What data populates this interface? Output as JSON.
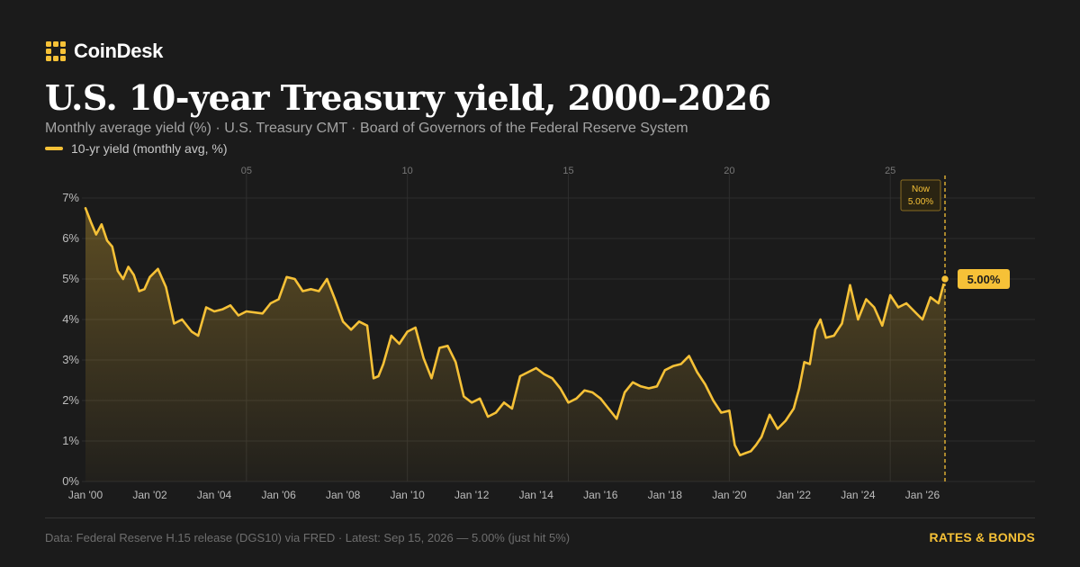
{
  "brand": {
    "name": "CoinDesk",
    "icon": "coindesk-logo-icon"
  },
  "header": {
    "title": "U.S. 10-year Treasury yield, 2000–2026",
    "subtitle": "Monthly average yield (%) · U.S. Treasury CMT · Board of Governors of the Federal Reserve System"
  },
  "legend": {
    "label": "10-yr yield (monthly avg, %)"
  },
  "footer": {
    "source": "Data: Federal Reserve H.15 release (DGS10) via FRED · Latest: Sep 15, 2026 — 5.00% (just hit 5%)",
    "tag": "RATES & BONDS"
  },
  "colors": {
    "background": "#1b1b1b",
    "accent": "#f6c137",
    "grid": "#2e2e2e",
    "axis_text": "#bdbdbd",
    "muted_text": "#a3a3a3"
  },
  "chart_data": {
    "type": "area",
    "title": "U.S. 10-year Treasury yield, 2000–2026",
    "y_unit": "%",
    "ylim": [
      0,
      7
    ],
    "y_ticks": [
      0,
      1,
      2,
      3,
      4,
      5,
      6,
      7
    ],
    "y_tick_labels": [
      "0%",
      "1%",
      "2%",
      "3%",
      "4%",
      "5%",
      "6%",
      "7%"
    ],
    "x_range": [
      2000.0,
      2026.7
    ],
    "x_ticks": [
      2000,
      2002,
      2004,
      2006,
      2008,
      2010,
      2012,
      2014,
      2016,
      2018,
      2020,
      2022,
      2024,
      2026
    ],
    "x_tick_labels": [
      "Jan '00",
      "Jan '02",
      "Jan '04",
      "Jan '06",
      "Jan '08",
      "Jan '10",
      "Jan '12",
      "Jan '14",
      "Jan '16",
      "Jan '18",
      "Jan '20",
      "Jan '22",
      "Jan '24",
      "Jan '26"
    ],
    "top_ticks": [
      2005,
      2010,
      2015,
      2020,
      2025
    ],
    "top_tick_labels": [
      "05",
      "10",
      "15",
      "20",
      "25"
    ],
    "grid": true,
    "series": [
      {
        "name": "10-yr yield (monthly avg, %)",
        "color": "#f6c137",
        "x": [
          2000.0,
          2000.17,
          2000.33,
          2000.5,
          2000.67,
          2000.83,
          2001.0,
          2001.17,
          2001.33,
          2001.5,
          2001.67,
          2001.83,
          2002.0,
          2002.25,
          2002.5,
          2002.75,
          2003.0,
          2003.3,
          2003.5,
          2003.75,
          2004.0,
          2004.25,
          2004.5,
          2004.75,
          2005.0,
          2005.5,
          2005.75,
          2006.0,
          2006.25,
          2006.5,
          2006.75,
          2007.0,
          2007.25,
          2007.5,
          2007.75,
          2008.0,
          2008.25,
          2008.5,
          2008.75,
          2008.95,
          2009.1,
          2009.25,
          2009.5,
          2009.75,
          2010.0,
          2010.25,
          2010.5,
          2010.75,
          2011.0,
          2011.25,
          2011.5,
          2011.75,
          2012.0,
          2012.25,
          2012.5,
          2012.75,
          2013.0,
          2013.25,
          2013.5,
          2013.75,
          2014.0,
          2014.25,
          2014.5,
          2014.75,
          2015.0,
          2015.25,
          2015.5,
          2015.75,
          2016.0,
          2016.25,
          2016.5,
          2016.75,
          2017.0,
          2017.25,
          2017.5,
          2017.75,
          2018.0,
          2018.25,
          2018.5,
          2018.75,
          2019.0,
          2019.25,
          2019.5,
          2019.75,
          2020.0,
          2020.17,
          2020.33,
          2020.5,
          2020.67,
          2020.83,
          2021.0,
          2021.25,
          2021.5,
          2021.75,
          2022.0,
          2022.17,
          2022.33,
          2022.5,
          2022.67,
          2022.83,
          2023.0,
          2023.25,
          2023.5,
          2023.75,
          2024.0,
          2024.25,
          2024.5,
          2024.75,
          2025.0,
          2025.25,
          2025.5,
          2025.75,
          2026.0,
          2026.25,
          2026.5,
          2026.7
        ],
        "y": [
          6.75,
          6.4,
          6.1,
          6.35,
          5.95,
          5.8,
          5.2,
          5.0,
          5.3,
          5.1,
          4.7,
          4.75,
          5.05,
          5.25,
          4.8,
          3.9,
          4.0,
          3.7,
          3.6,
          4.3,
          4.2,
          4.25,
          4.35,
          4.1,
          4.2,
          4.15,
          4.4,
          4.5,
          5.05,
          5.0,
          4.7,
          4.75,
          4.7,
          5.0,
          4.5,
          3.95,
          3.75,
          3.95,
          3.85,
          2.55,
          2.6,
          2.9,
          3.6,
          3.4,
          3.7,
          3.8,
          3.05,
          2.55,
          3.3,
          3.35,
          2.95,
          2.1,
          1.95,
          2.05,
          1.6,
          1.7,
          1.95,
          1.8,
          2.6,
          2.7,
          2.8,
          2.65,
          2.55,
          2.3,
          1.95,
          2.05,
          2.25,
          2.2,
          2.05,
          1.8,
          1.55,
          2.2,
          2.45,
          2.35,
          2.3,
          2.35,
          2.75,
          2.85,
          2.9,
          3.1,
          2.7,
          2.4,
          2.0,
          1.7,
          1.75,
          0.9,
          0.65,
          0.7,
          0.75,
          0.9,
          1.1,
          1.65,
          1.3,
          1.5,
          1.8,
          2.3,
          2.95,
          2.9,
          3.75,
          4.0,
          3.55,
          3.6,
          3.9,
          4.85,
          4.0,
          4.5,
          4.3,
          3.85,
          4.6,
          4.3,
          4.4,
          4.2,
          4.0,
          4.55,
          4.4,
          5.0
        ]
      }
    ],
    "annotations": [
      {
        "x": 2026.7,
        "label_top": "Now",
        "label_value": "5.00%"
      }
    ],
    "end_label": "5.00%"
  }
}
